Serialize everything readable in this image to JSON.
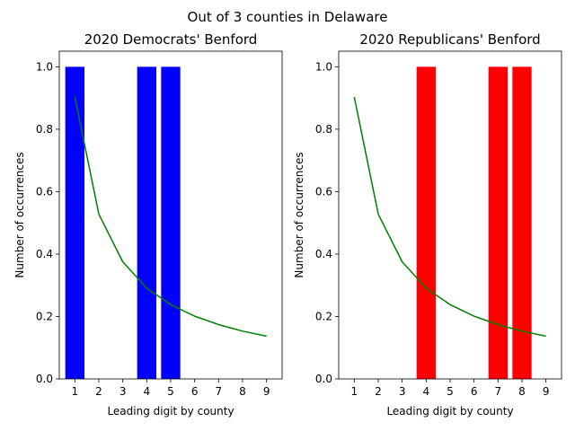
{
  "figure": {
    "suptitle": "Out of 3 counties in Delaware"
  },
  "chart_data": [
    {
      "type": "bar",
      "title": "2020 Democrats' Benford",
      "xlabel": "Leading digit by county",
      "ylabel": "Number of occurrences",
      "x": [
        1,
        2,
        3,
        4,
        5,
        6,
        7,
        8,
        9
      ],
      "xticks": [
        "1",
        "2",
        "3",
        "4",
        "5",
        "6",
        "7",
        "8",
        "9"
      ],
      "yticks": [
        "0.0",
        "0.2",
        "0.4",
        "0.6",
        "0.8",
        "1.0"
      ],
      "xlim": [
        0.35,
        9.65
      ],
      "ylim": [
        0,
        1.05
      ],
      "grid": false,
      "series": [
        {
          "kind": "bar",
          "color": "#0000ff",
          "values": [
            1,
            0,
            0,
            1,
            1,
            0,
            0,
            0,
            0
          ]
        },
        {
          "kind": "line",
          "color": "#008000",
          "values": [
            0.903,
            0.528,
            0.375,
            0.291,
            0.238,
            0.201,
            0.174,
            0.153,
            0.137
          ]
        }
      ]
    },
    {
      "type": "bar",
      "title": "2020 Republicans' Benford",
      "xlabel": "Leading digit by county",
      "ylabel": "Number of occurrences",
      "x": [
        1,
        2,
        3,
        4,
        5,
        6,
        7,
        8,
        9
      ],
      "xticks": [
        "1",
        "2",
        "3",
        "4",
        "5",
        "6",
        "7",
        "8",
        "9"
      ],
      "yticks": [
        "0.0",
        "0.2",
        "0.4",
        "0.6",
        "0.8",
        "1.0"
      ],
      "xlim": [
        0.35,
        9.65
      ],
      "ylim": [
        0,
        1.05
      ],
      "grid": false,
      "series": [
        {
          "kind": "bar",
          "color": "#ff0000",
          "values": [
            0,
            0,
            0,
            1,
            0,
            0,
            1,
            1,
            0
          ]
        },
        {
          "kind": "line",
          "color": "#008000",
          "values": [
            0.903,
            0.528,
            0.375,
            0.291,
            0.238,
            0.201,
            0.174,
            0.153,
            0.137
          ]
        }
      ]
    }
  ]
}
